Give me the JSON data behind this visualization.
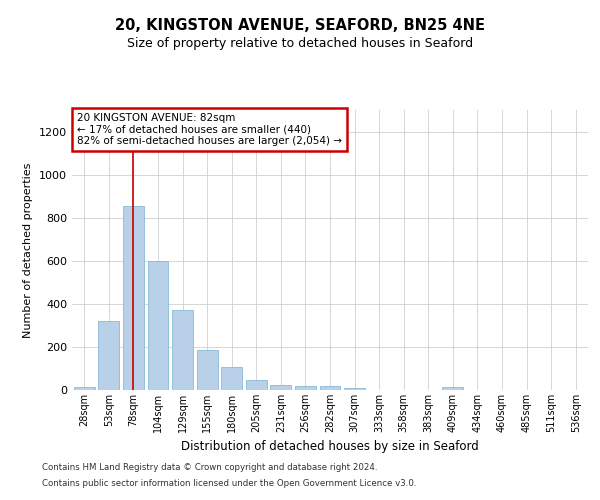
{
  "title1": "20, KINGSTON AVENUE, SEAFORD, BN25 4NE",
  "title2": "Size of property relative to detached houses in Seaford",
  "xlabel": "Distribution of detached houses by size in Seaford",
  "ylabel": "Number of detached properties",
  "categories": [
    "28sqm",
    "53sqm",
    "78sqm",
    "104sqm",
    "129sqm",
    "155sqm",
    "180sqm",
    "205sqm",
    "231sqm",
    "256sqm",
    "282sqm",
    "307sqm",
    "333sqm",
    "358sqm",
    "383sqm",
    "409sqm",
    "434sqm",
    "460sqm",
    "485sqm",
    "511sqm",
    "536sqm"
  ],
  "values": [
    15,
    320,
    855,
    600,
    370,
    185,
    105,
    48,
    22,
    18,
    18,
    10,
    0,
    0,
    0,
    12,
    0,
    0,
    0,
    0,
    0
  ],
  "bar_color": "#b8d0e8",
  "bar_edge_color": "#7aafd0",
  "highlight_bar_index": 2,
  "highlight_line_color": "#cc0000",
  "annotation_text": "20 KINGSTON AVENUE: 82sqm\n← 17% of detached houses are smaller (440)\n82% of semi-detached houses are larger (2,054) →",
  "annotation_box_color": "#ffffff",
  "annotation_box_edge_color": "#cc0000",
  "ylim": [
    0,
    1300
  ],
  "yticks": [
    0,
    200,
    400,
    600,
    800,
    1000,
    1200
  ],
  "grid_color": "#d0d0d0",
  "background_color": "#ffffff",
  "footer_line1": "Contains HM Land Registry data © Crown copyright and database right 2024.",
  "footer_line2": "Contains public sector information licensed under the Open Government Licence v3.0."
}
